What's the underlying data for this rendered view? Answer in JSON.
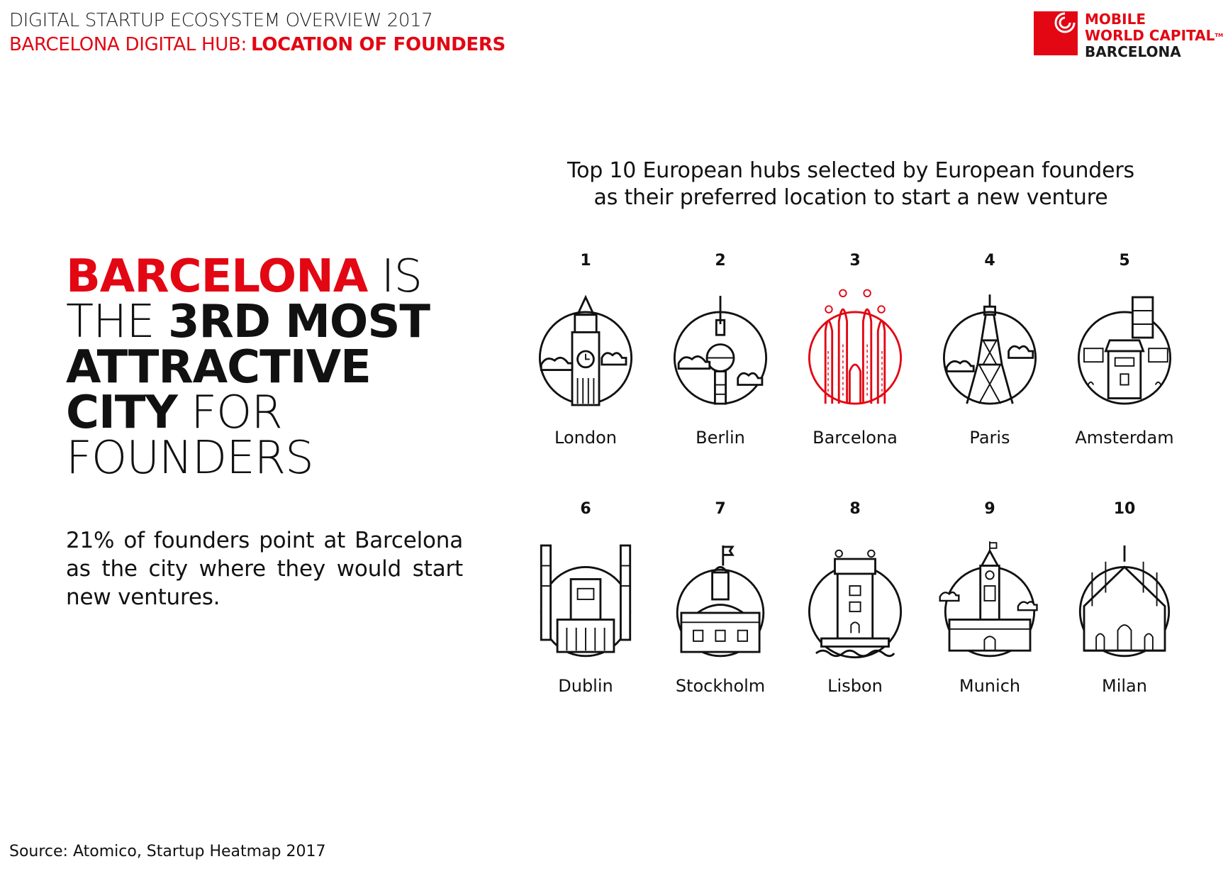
{
  "header": {
    "line1": "DIGITAL STARTUP ECOSYSTEM OVERVIEW 2017",
    "line2_prefix": "BARCELONA DIGITAL HUB:",
    "line2_bold": "LOCATION OF FOUNDERS"
  },
  "logo": {
    "line1": "MOBILE",
    "line2": "WORLD CAPITAL",
    "tm": "TM",
    "line3": "BARCELONA"
  },
  "headline": {
    "w1": "BARCELONA",
    "w2": "IS",
    "w3": "THE",
    "w4": "3RD MOST",
    "w5": "ATTRACTIVE",
    "w6": "CITY",
    "w7": "FOR",
    "w8": "FOUNDERS"
  },
  "description": "21% of founders point at Barcelona as the city where they would start new ventures.",
  "chart_title_line1": "Top 10 European hubs selected by European founders",
  "chart_title_line2": "as their preferred location to start a new venture",
  "cities": [
    {
      "rank": "1",
      "name": "London",
      "icon": "big-ben-icon"
    },
    {
      "rank": "2",
      "name": "Berlin",
      "icon": "tv-tower-icon"
    },
    {
      "rank": "3",
      "name": "Barcelona",
      "icon": "sagrada-familia-icon"
    },
    {
      "rank": "4",
      "name": "Paris",
      "icon": "eiffel-tower-icon"
    },
    {
      "rank": "5",
      "name": "Amsterdam",
      "icon": "amsterdam-building-icon"
    },
    {
      "rank": "6",
      "name": "Dublin",
      "icon": "dublin-building-icon"
    },
    {
      "rank": "7",
      "name": "Stockholm",
      "icon": "stockholm-palace-icon"
    },
    {
      "rank": "8",
      "name": "Lisbon",
      "icon": "belem-tower-icon"
    },
    {
      "rank": "9",
      "name": "Munich",
      "icon": "munich-town-hall-icon"
    },
    {
      "rank": "10",
      "name": "Milan",
      "icon": "milan-cathedral-icon"
    }
  ],
  "colors": {
    "accent": "#e30613",
    "text": "#111111"
  },
  "source": "Source: Atomico, Startup Heatmap 2017"
}
